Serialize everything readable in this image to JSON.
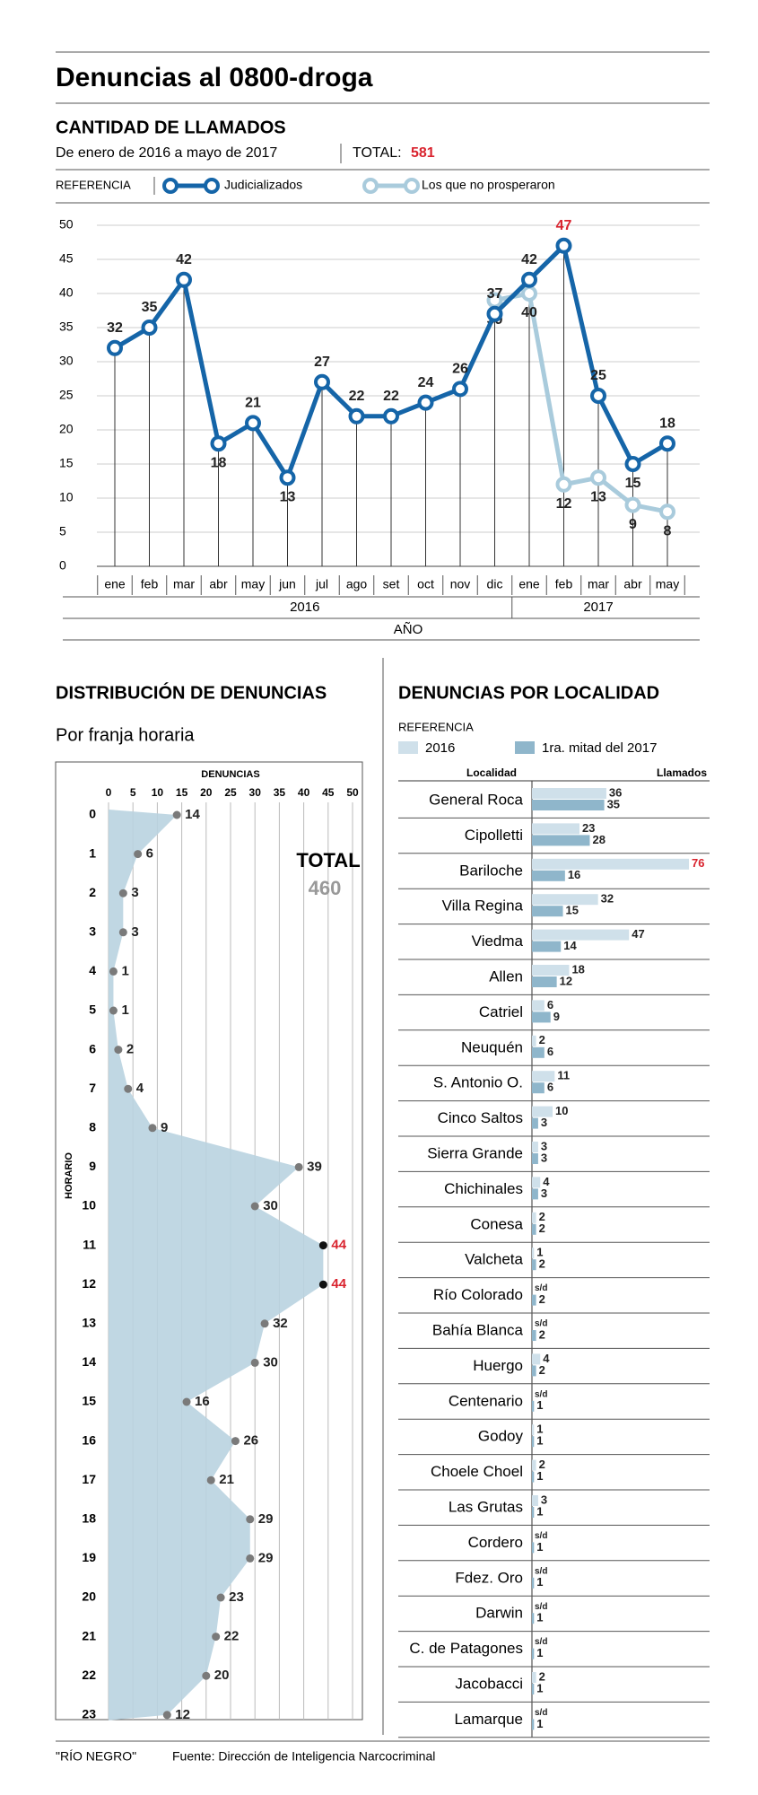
{
  "header": {
    "title": "Denuncias al 0800-droga",
    "section": "CANTIDAD DE LLAMADOS",
    "subtitle": "De enero de 2016 a mayo de 2017",
    "total_label": "TOTAL:",
    "total": 581,
    "legend_label": "REFERENCIA"
  },
  "footer": {
    "source_name": "\"RÍO NEGRO\"",
    "source": "Fuente: Dirección de Inteligencia Narcocriminal"
  },
  "chart_data": [
    {
      "type": "line",
      "categories": [
        "ene",
        "feb",
        "mar",
        "abr",
        "may",
        "jun",
        "jul",
        "ago",
        "set",
        "oct",
        "nov",
        "dic",
        "ene",
        "feb",
        "mar",
        "abr",
        "may"
      ],
      "groups": [
        {
          "label": "2016",
          "span": 12
        },
        {
          "label": "2017",
          "span": 5
        }
      ],
      "x_label": "AÑO",
      "series": [
        {
          "name": "Judicializados",
          "color": "#1565a8",
          "values": [
            32,
            35,
            42,
            18,
            21,
            13,
            27,
            22,
            22,
            24,
            26,
            37,
            42,
            47,
            25,
            15,
            18
          ]
        },
        {
          "name": "Los que no prosperaron",
          "color": "#a9cbdc",
          "values": [
            null,
            null,
            null,
            null,
            null,
            null,
            null,
            null,
            null,
            null,
            null,
            39,
            40,
            12,
            13,
            9,
            8
          ]
        }
      ],
      "ylim": [
        0,
        50
      ],
      "yticks": [
        0,
        5,
        10,
        15,
        20,
        25,
        30,
        35,
        40,
        45,
        50
      ],
      "grid": true,
      "highlight_color": "#d9232e"
    },
    {
      "type": "area",
      "title": "DISTRIBUCIÓN DE DENUNCIAS",
      "subtitle": "Por franja horaria",
      "x_label": "DENUNCIAS",
      "y_label": "HORARIO",
      "categories": [
        "0",
        "1",
        "2",
        "3",
        "4",
        "5",
        "6",
        "7",
        "8",
        "9",
        "10",
        "11",
        "12",
        "13",
        "14",
        "15",
        "16",
        "17",
        "18",
        "19",
        "20",
        "21",
        "22",
        "23"
      ],
      "values": [
        14,
        6,
        3,
        3,
        1,
        1,
        2,
        4,
        9,
        39,
        30,
        44,
        44,
        32,
        30,
        16,
        26,
        21,
        29,
        29,
        23,
        22,
        20,
        12
      ],
      "xlim": [
        0,
        50
      ],
      "xticks": [
        0,
        5,
        10,
        15,
        20,
        25,
        30,
        35,
        40,
        45,
        50
      ],
      "grid": true,
      "color": "#b9d3e0",
      "dot_color": "#7a7a7a",
      "highlight_color": "#d9232e",
      "total_label": "TOTAL",
      "total": 460
    },
    {
      "type": "hbar",
      "title": "DENUNCIAS POR LOCALIDAD",
      "legend_label": "REFERENCIA",
      "category_header": "Localidad",
      "value_header": "Llamados",
      "categories": [
        "General Roca",
        "Cipolletti",
        "Bariloche",
        "Villa Regina",
        "Viedma",
        "Allen",
        "Catriel",
        "Neuquén",
        "S. Antonio O.",
        "Cinco Saltos",
        "Sierra Grande",
        "Chichinales",
        "Conesa",
        "Valcheta",
        "Río Colorado",
        "Bahía Blanca",
        "Huergo",
        "Centenario",
        "Godoy",
        "Choele Choel",
        "Las Grutas",
        "Cordero",
        "Fdez. Oro",
        "Darwin",
        "C. de Patagones",
        "Jacobacci",
        "Lamarque"
      ],
      "series": [
        {
          "name": "2016",
          "color": "#cfe0ea",
          "values": [
            36,
            23,
            76,
            32,
            47,
            18,
            6,
            2,
            11,
            10,
            3,
            4,
            2,
            1,
            null,
            null,
            4,
            null,
            1,
            2,
            3,
            null,
            null,
            null,
            null,
            2,
            null
          ],
          "value_labels": [
            null,
            null,
            null,
            null,
            null,
            null,
            null,
            null,
            null,
            null,
            null,
            null,
            null,
            null,
            "s/d",
            "s/d",
            null,
            "s/d",
            null,
            null,
            null,
            "s/d",
            "s/d",
            "s/d",
            "s/d",
            null,
            "s/d"
          ]
        },
        {
          "name": "1ra. mitad del 2017",
          "color": "#8fb6cb",
          "values": [
            35,
            28,
            16,
            15,
            14,
            12,
            9,
            6,
            6,
            3,
            3,
            3,
            2,
            2,
            2,
            2,
            2,
            1,
            1,
            1,
            1,
            1,
            1,
            1,
            1,
            1,
            1
          ]
        }
      ],
      "highlight_color": "#d9232e"
    }
  ]
}
